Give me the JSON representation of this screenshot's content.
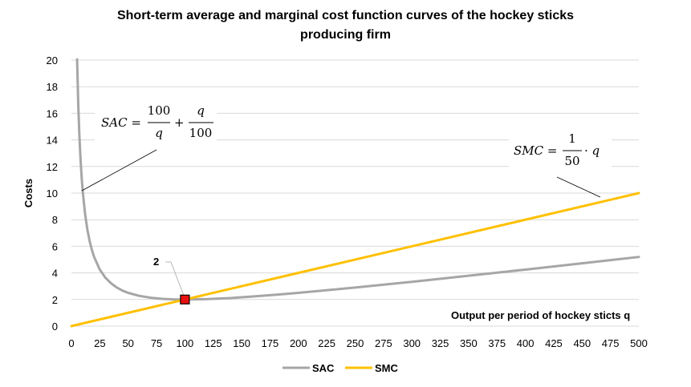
{
  "chart_data": {
    "type": "line",
    "title_line1": "Short-term average and marginal cost function curves of the hockey sticks",
    "title_line2": "producing firm",
    "ylabel": "Costs",
    "xlabel": "Output per period of hockey sticts q",
    "xlim": [
      0,
      500
    ],
    "ylim": [
      0,
      20
    ],
    "x_ticks": [
      "0",
      "25",
      "50",
      "75",
      "100",
      "125",
      "150",
      "175",
      "200",
      "225",
      "250",
      "275",
      "300",
      "325",
      "350",
      "375",
      "400",
      "425",
      "450",
      "475",
      "500"
    ],
    "y_ticks": [
      "0",
      "2",
      "4",
      "6",
      "8",
      "10",
      "12",
      "14",
      "16",
      "18",
      "20"
    ],
    "grid": "horizontal",
    "legend_position": "bottom",
    "series": [
      {
        "name": "SAC",
        "color": "#a6a6a6",
        "x": [
          5,
          6,
          7,
          8,
          9,
          10,
          12,
          14,
          16,
          18,
          20,
          25,
          30,
          35,
          40,
          45,
          50,
          60,
          70,
          80,
          90,
          100,
          120,
          140,
          160,
          180,
          200,
          250,
          300,
          350,
          400,
          450,
          500
        ],
        "y": [
          20.05,
          16.73,
          14.36,
          12.58,
          11.2,
          10.1,
          8.45,
          7.28,
          6.41,
          5.74,
          5.2,
          4.25,
          3.63,
          3.21,
          2.9,
          2.67,
          2.5,
          2.27,
          2.13,
          2.05,
          2.01,
          2.0,
          2.03,
          2.11,
          2.23,
          2.36,
          2.5,
          2.9,
          3.33,
          3.79,
          4.25,
          4.72,
          5.2
        ]
      },
      {
        "name": "SMC",
        "color": "#ffc000",
        "x": [
          0,
          500
        ],
        "y": [
          0,
          10
        ]
      }
    ],
    "annotations": {
      "point_label": "2",
      "point_x": 100,
      "point_y": 2,
      "sac_formula": {
        "lhs": "SAC =",
        "num1": "100",
        "den1": "q",
        "plus": "+",
        "num2": "q",
        "den2": "100"
      },
      "smc_formula": {
        "lhs": "SMC =",
        "num": "1",
        "den": "50",
        "rhs": "· q"
      }
    }
  }
}
